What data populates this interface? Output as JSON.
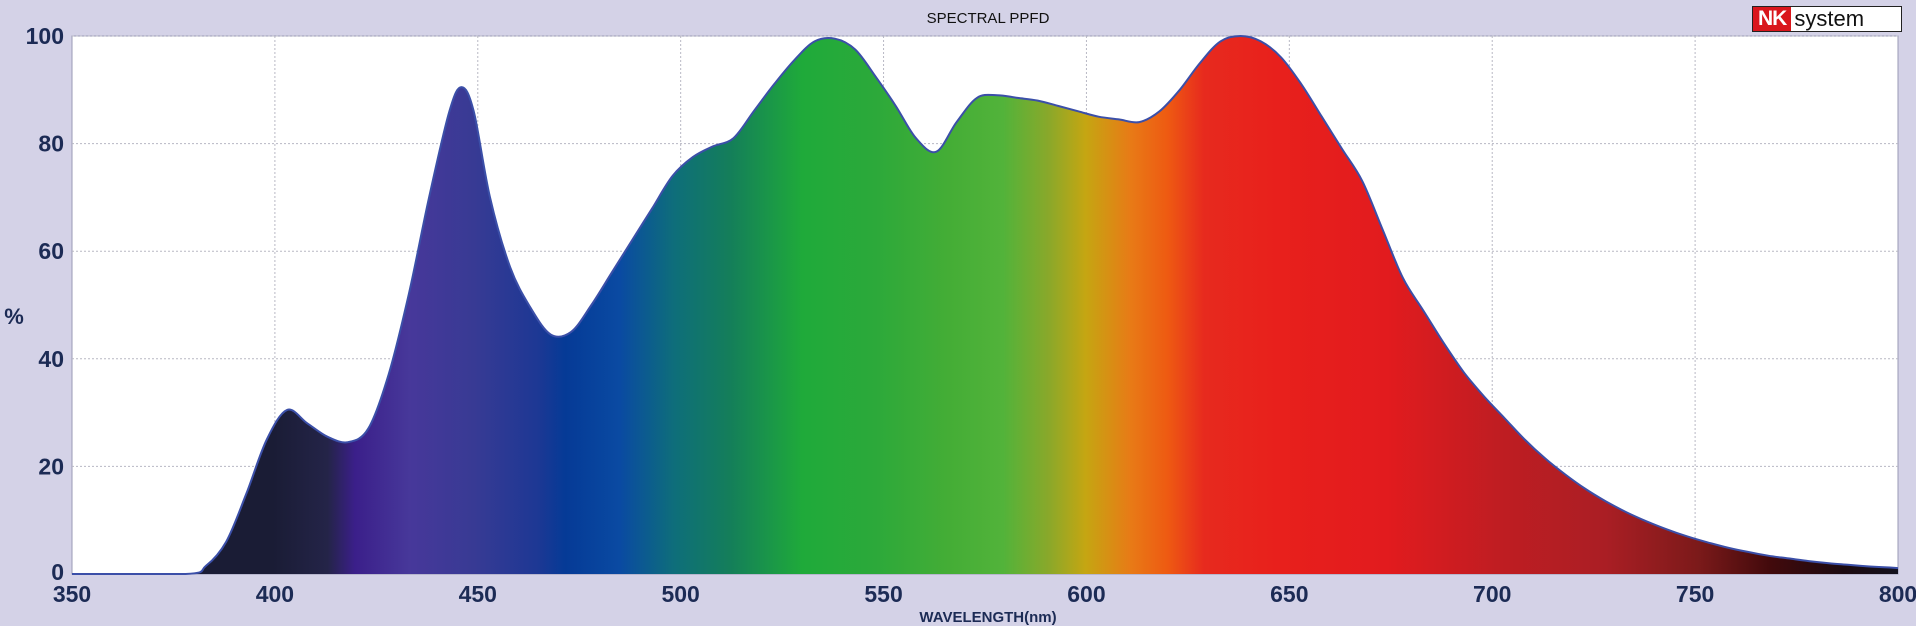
{
  "logo": {
    "prefix": "NK",
    "suffix": "system"
  },
  "chart_data": {
    "type": "area",
    "title": "SPECTRAL PPFD",
    "xlabel": "WAVELENGTH(nm)",
    "ylabel": "%",
    "xlim": [
      350,
      800
    ],
    "ylim": [
      0,
      100
    ],
    "xticks": [
      350,
      400,
      450,
      500,
      550,
      600,
      650,
      700,
      750,
      800
    ],
    "yticks": [
      0,
      20,
      40,
      60,
      80,
      100
    ],
    "grid": true,
    "fill": "spectral-gradient",
    "line_color": "#3b4fa8",
    "series": [
      {
        "x": [
          350,
          378,
          383,
          388,
          393,
          398,
          403,
          408,
          413,
          418,
          423,
          428,
          433,
          438,
          443,
          446,
          449,
          453,
          458,
          463,
          468,
          473,
          478,
          483,
          488,
          493,
          498,
          503,
          508,
          513,
          518,
          523,
          528,
          533,
          538,
          543,
          548,
          553,
          558,
          563,
          568,
          573,
          578,
          583,
          588,
          593,
          598,
          603,
          608,
          613,
          618,
          623,
          628,
          633,
          638,
          643,
          648,
          653,
          658,
          663,
          668,
          673,
          678,
          683,
          688,
          693,
          698,
          703,
          708,
          713,
          718,
          723,
          728,
          733,
          738,
          743,
          748,
          753,
          758,
          763,
          768,
          773,
          778,
          783,
          788,
          793,
          798,
          800
        ],
        "y": [
          0,
          0,
          1.5,
          6,
          15,
          25,
          30.5,
          28,
          25.5,
          24.5,
          27,
          37,
          52,
          70,
          86,
          90.5,
          86,
          70,
          57,
          49.5,
          44.5,
          45,
          50,
          56,
          62,
          68,
          74,
          77.5,
          79.5,
          81,
          86,
          91,
          95.5,
          99,
          99.5,
          97.5,
          92.5,
          87,
          81,
          78.5,
          84,
          88.5,
          89,
          88.5,
          88,
          87,
          86,
          85,
          84.5,
          84,
          86,
          90,
          95,
          99,
          100,
          99,
          96,
          91,
          85,
          79,
          73,
          64,
          55,
          49,
          43,
          37.5,
          33,
          29,
          25,
          21.5,
          18.5,
          15.8,
          13.5,
          11.5,
          9.8,
          8.3,
          7,
          5.9,
          4.9,
          4.1,
          3.4,
          2.9,
          2.4,
          2,
          1.7,
          1.4,
          1.2,
          1.1
        ]
      }
    ]
  }
}
